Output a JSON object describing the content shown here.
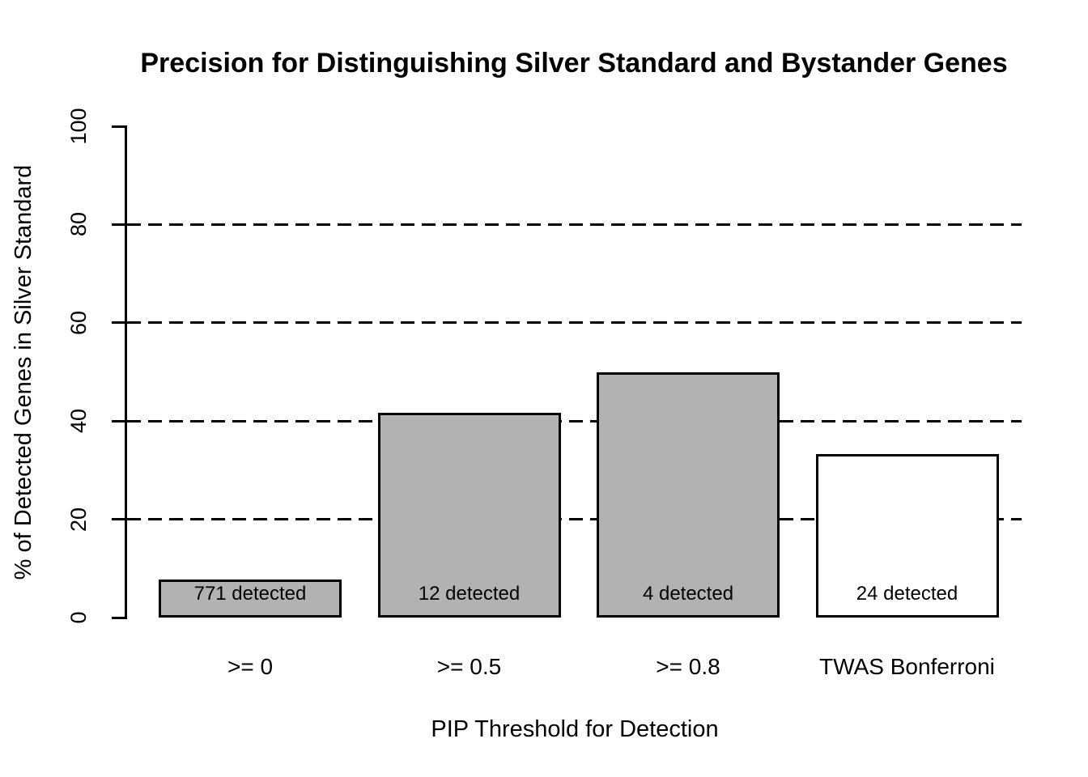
{
  "chart_data": {
    "type": "bar",
    "title": "Precision for Distinguishing Silver Standard and Bystander Genes",
    "xlabel": "PIP Threshold for Detection",
    "ylabel": "% of Detected Genes in Silver Standard",
    "categories": [
      ">= 0",
      ">= 0.5",
      ">= 0.8",
      "TWAS Bonferroni"
    ],
    "values": [
      7.8,
      41.7,
      50,
      33.3
    ],
    "bar_labels": [
      "771 detected",
      "12 detected",
      "4 detected",
      "24 detected"
    ],
    "bar_fill_colors": [
      "#b2b2b2",
      "#b2b2b2",
      "#b2b2b2",
      "#ffffff"
    ],
    "bar_border_color": "#000000",
    "ylim": [
      0,
      100
    ],
    "yticks": [
      0,
      20,
      40,
      60,
      80,
      100
    ],
    "gridlines": {
      "values": [
        20,
        40,
        60,
        80
      ],
      "style": "dashed",
      "color": "#000000"
    },
    "axis_color": "#000000",
    "background": "#ffffff",
    "legend_position": "none"
  }
}
